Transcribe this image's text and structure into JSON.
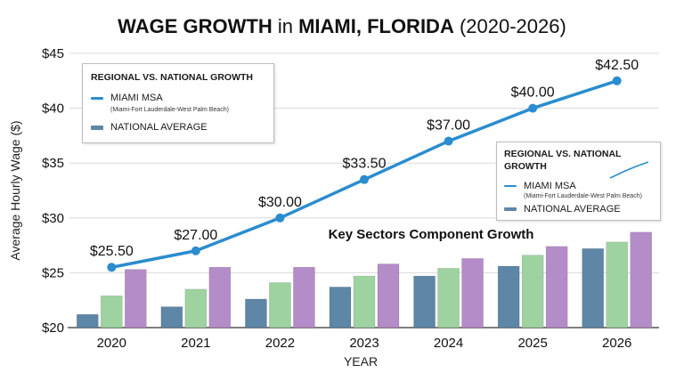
{
  "colors": {
    "line": "#2b8ccf",
    "national": "#5e86a6",
    "sector_green": "#9ed2a0",
    "sector_purple": "#b48cc8",
    "grid": "#d9d9d9"
  },
  "chart_data": {
    "type": "bar",
    "title_parts": [
      {
        "text": "WAGE GROWTH",
        "bold": true
      },
      {
        "text": " in ",
        "bold": false
      },
      {
        "text": "MIAMI, FLORIDA",
        "bold": true
      },
      {
        "text": " (2020-2026)",
        "bold": false
      }
    ],
    "xlabel": "YEAR",
    "ylabel": "Average Hourly Wage ($)",
    "ylim": [
      20,
      45
    ],
    "yticks": [
      20,
      25,
      30,
      35,
      40,
      45
    ],
    "ytick_labels": [
      "$20",
      "$25",
      "$30",
      "$35",
      "$40",
      "$45"
    ],
    "categories": [
      "2020",
      "2021",
      "2022",
      "2023",
      "2024",
      "2025",
      "2026"
    ],
    "grid": true,
    "line_series": {
      "name": "MIAMI MSA",
      "values": [
        25.5,
        27.0,
        30.0,
        33.5,
        37.0,
        40.0,
        42.5
      ],
      "labels": [
        "$25.50",
        "$27.00",
        "$30.00",
        "$33.50",
        "$37.00",
        "$40.00",
        "$42.50"
      ]
    },
    "bar_series": [
      {
        "name": "NATIONAL AVERAGE",
        "values": [
          21.2,
          21.9,
          22.6,
          23.7,
          24.7,
          25.6,
          27.2
        ]
      },
      {
        "values": [
          22.9,
          23.5,
          24.1,
          24.7,
          25.4,
          26.6,
          27.8
        ]
      },
      {
        "values": [
          25.3,
          25.5,
          25.5,
          25.8,
          26.3,
          27.4,
          28.7
        ]
      }
    ],
    "annotation": "Key Sectors Component Growth"
  },
  "legend_main": {
    "title": "REGIONAL VS. NATIONAL GROWTH",
    "items": [
      {
        "label": "MIAMI MSA",
        "sub": "(Miami-Fort Lauderdale-West Palm Beach)"
      },
      {
        "label": "NATIONAL AVERAGE"
      }
    ]
  },
  "legend_secondary": {
    "title_line1": "REGIONAL VS. NATIONAL",
    "title_line2": "GROWTH",
    "items": [
      {
        "label": "MIAMI MSA",
        "sub": "(Miami-Fort Lauderdale-West Palm Beach)"
      },
      {
        "label": "NATIONAL AVERAGE"
      }
    ]
  }
}
